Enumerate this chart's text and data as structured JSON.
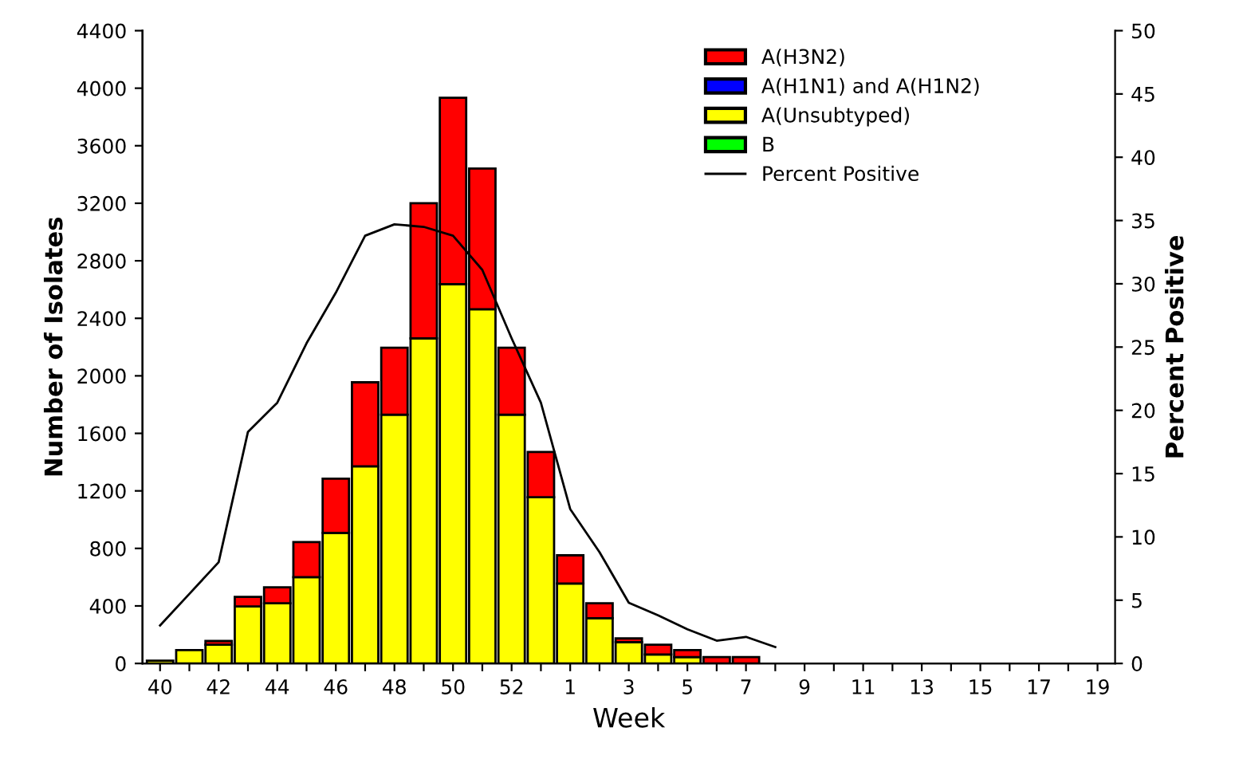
{
  "chart_data": {
    "type": "bar",
    "stacked": true,
    "xlabel": "Week",
    "ylabel": "Number of Isolates",
    "y2label": "Percent Positive",
    "categories": [
      "40",
      null,
      "42",
      null,
      "44",
      null,
      "46",
      null,
      "48",
      null,
      "50",
      null,
      "52",
      null,
      "1",
      null,
      "3",
      null,
      "5",
      null,
      "7",
      null,
      "9",
      null,
      "11",
      null,
      "13",
      null,
      "15",
      null,
      "17",
      null,
      "19"
    ],
    "series": [
      {
        "name": "B",
        "color": "#00ff00",
        "values": [
          0,
          0,
          0,
          0,
          0,
          0,
          0,
          0,
          0,
          0,
          0,
          0,
          0,
          0,
          0,
          0,
          0,
          0,
          0,
          0,
          0,
          null,
          null,
          null,
          null,
          null,
          null,
          null,
          null,
          null,
          null,
          null,
          null
        ]
      },
      {
        "name": "A(Unsubtyped)",
        "color": "#ffff00",
        "values": [
          20,
          93,
          130,
          397,
          419,
          600,
          908,
          1371,
          1730,
          2260,
          2637,
          2463,
          1730,
          1156,
          556,
          315,
          148,
          63,
          44,
          null,
          null,
          null,
          null,
          null,
          null,
          null,
          null,
          null,
          null,
          null,
          null,
          null,
          null
        ]
      },
      {
        "name": "A(H1N1) and A(H1N2)",
        "color": "#0000ff",
        "values": [
          0,
          0,
          0,
          0,
          0,
          0,
          0,
          0,
          0,
          0,
          0,
          0,
          0,
          0,
          0,
          0,
          0,
          0,
          0,
          0,
          0,
          null,
          null,
          null,
          null,
          null,
          null,
          null,
          null,
          null,
          null,
          null,
          null
        ]
      },
      {
        "name": "A(H3N2)",
        "color": "#ff0000",
        "values": [
          0,
          0,
          26,
          66,
          111,
          244,
          377,
          584,
          466,
          940,
          1296,
          978,
          466,
          315,
          196,
          104,
          26,
          67,
          49,
          44,
          44,
          null,
          null,
          null,
          null,
          null,
          null,
          null,
          null,
          null,
          null,
          null,
          null
        ]
      },
      {
        "name": "Percent Positive",
        "type": "line",
        "axis": "y2",
        "color": "#000000",
        "values": [
          3.0,
          5.5,
          8.0,
          18.3,
          20.6,
          25.3,
          29.3,
          33.8,
          34.7,
          34.5,
          33.8,
          31.1,
          25.7,
          20.6,
          12.2,
          8.8,
          4.8,
          3.8,
          2.7,
          1.8,
          2.1,
          1.3,
          null,
          null,
          null,
          null,
          null,
          null,
          null,
          null,
          null,
          null,
          null
        ]
      }
    ],
    "ylim": [
      0,
      4400
    ],
    "yticks": [
      0,
      400,
      800,
      1200,
      1600,
      2000,
      2400,
      2800,
      3200,
      3600,
      4000,
      4400
    ],
    "y2lim": [
      0,
      50
    ],
    "y2ticks": [
      0,
      5,
      10,
      15,
      20,
      25,
      30,
      35,
      40,
      45,
      50
    ],
    "legend": "top right",
    "grid": false
  }
}
